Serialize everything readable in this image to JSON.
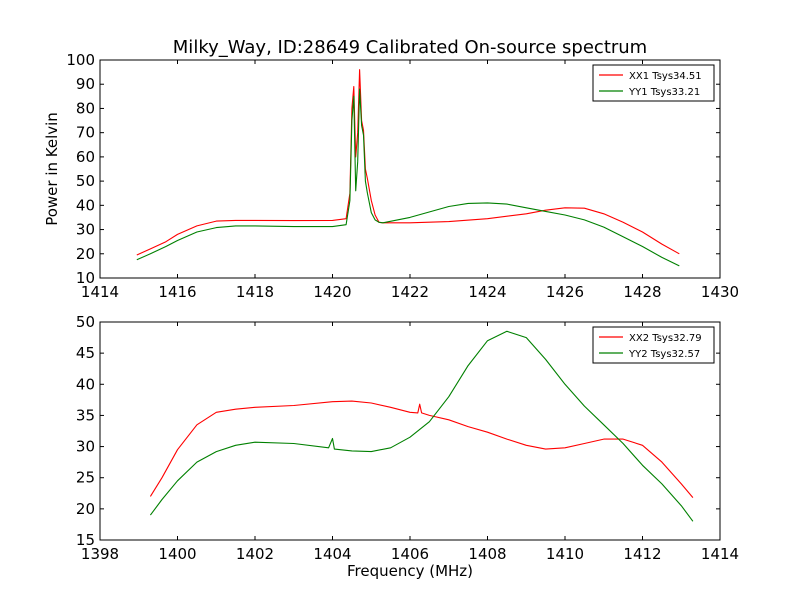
{
  "chart_data": [
    {
      "type": "line",
      "title": "Milky_Way, ID:28649 Calibrated On-source spectrum",
      "ylabel": "Power in Kelvin",
      "xlabel": "",
      "xlim": [
        1414,
        1430
      ],
      "ylim": [
        10,
        100
      ],
      "xticks": [
        1414,
        1416,
        1418,
        1420,
        1422,
        1424,
        1426,
        1428,
        1430
      ],
      "yticks": [
        10,
        20,
        30,
        40,
        50,
        60,
        70,
        80,
        90,
        100
      ],
      "grid": false,
      "legend_position": "top-right",
      "series": [
        {
          "name": "XX1 Tsys34.51",
          "color": "#ff0000",
          "x": [
            1414.95,
            1415.3,
            1415.7,
            1416.0,
            1416.5,
            1417.0,
            1417.5,
            1418.0,
            1419.0,
            1420.0,
            1420.35,
            1420.45,
            1420.5,
            1420.55,
            1420.6,
            1420.65,
            1420.7,
            1420.75,
            1420.8,
            1420.85,
            1420.9,
            1421.0,
            1421.1,
            1421.2,
            1421.3,
            1422.0,
            1423.0,
            1424.0,
            1425.0,
            1425.5,
            1426.0,
            1426.5,
            1427.0,
            1427.5,
            1428.0,
            1428.5,
            1428.95
          ],
          "y": [
            19.5,
            22,
            25,
            28,
            31.5,
            33.5,
            33.8,
            33.8,
            33.7,
            33.8,
            34.5,
            45,
            80,
            89,
            60,
            70,
            96,
            75,
            71,
            55,
            51,
            42,
            36,
            33,
            32.8,
            32.8,
            33.3,
            34.5,
            36.5,
            38,
            39,
            38.8,
            36.5,
            33,
            29,
            24,
            20
          ]
        },
        {
          "name": "YY1 Tsys33.21",
          "color": "#008000",
          "x": [
            1414.95,
            1415.3,
            1415.7,
            1416.0,
            1416.5,
            1417.0,
            1417.5,
            1418.0,
            1419.0,
            1420.0,
            1420.35,
            1420.45,
            1420.5,
            1420.55,
            1420.6,
            1420.65,
            1420.7,
            1420.75,
            1420.8,
            1420.85,
            1420.9,
            1421.0,
            1421.1,
            1421.2,
            1421.3,
            1422.0,
            1423.0,
            1423.5,
            1424.0,
            1424.5,
            1425.0,
            1425.5,
            1426.0,
            1426.5,
            1427.0,
            1427.5,
            1428.0,
            1428.5,
            1428.95
          ],
          "y": [
            17.5,
            20,
            23,
            25.5,
            29,
            30.8,
            31.5,
            31.5,
            31.2,
            31.2,
            32,
            42,
            75,
            85,
            46,
            58,
            88,
            73,
            69,
            50,
            45,
            37,
            34,
            33,
            32.8,
            35,
            39.5,
            40.8,
            41,
            40.5,
            39,
            37.5,
            36,
            34,
            31,
            27,
            23,
            18.5,
            15
          ]
        }
      ]
    },
    {
      "type": "line",
      "title": "",
      "xlabel": "Frequency (MHz)",
      "ylabel": "",
      "xlim": [
        1398,
        1414
      ],
      "ylim": [
        15,
        50
      ],
      "xticks": [
        1398,
        1400,
        1402,
        1404,
        1406,
        1408,
        1410,
        1412,
        1414
      ],
      "yticks": [
        15,
        20,
        25,
        30,
        35,
        40,
        45,
        50
      ],
      "grid": false,
      "legend_position": "top-right",
      "series": [
        {
          "name": "XX2 Tsys32.79",
          "color": "#ff0000",
          "x": [
            1399.3,
            1399.6,
            1400.0,
            1400.5,
            1401.0,
            1401.5,
            1402.0,
            1403.0,
            1404.0,
            1404.5,
            1405.0,
            1405.5,
            1406.0,
            1406.2,
            1406.25,
            1406.3,
            1406.5,
            1407.0,
            1407.5,
            1408.0,
            1408.5,
            1409.0,
            1409.5,
            1410.0,
            1410.5,
            1411.0,
            1411.5,
            1412.0,
            1412.5,
            1413.0,
            1413.3
          ],
          "y": [
            22,
            25,
            29.5,
            33.5,
            35.5,
            36,
            36.3,
            36.6,
            37.2,
            37.3,
            37,
            36.3,
            35.5,
            35.4,
            36.8,
            35.4,
            35,
            34.3,
            33.2,
            32.3,
            31.2,
            30.2,
            29.6,
            29.8,
            30.5,
            31.2,
            31.2,
            30.2,
            27.5,
            24,
            21.8
          ]
        },
        {
          "name": "YY2 Tsys32.57",
          "color": "#008000",
          "x": [
            1399.3,
            1399.6,
            1400.0,
            1400.5,
            1401.0,
            1401.5,
            1402.0,
            1403.0,
            1403.9,
            1404.0,
            1404.05,
            1404.5,
            1405.0,
            1405.5,
            1406.0,
            1406.5,
            1407.0,
            1407.5,
            1408.0,
            1408.5,
            1409.0,
            1409.5,
            1410.0,
            1410.5,
            1411.0,
            1411.5,
            1412.0,
            1412.5,
            1413.0,
            1413.3
          ],
          "y": [
            19,
            21.5,
            24.5,
            27.5,
            29.2,
            30.2,
            30.7,
            30.5,
            29.8,
            31.3,
            29.6,
            29.3,
            29.2,
            29.8,
            31.5,
            34,
            38,
            43,
            47,
            48.5,
            47.5,
            44,
            40,
            36.5,
            33.5,
            30.5,
            27,
            24,
            20.5,
            18
          ]
        }
      ]
    }
  ]
}
